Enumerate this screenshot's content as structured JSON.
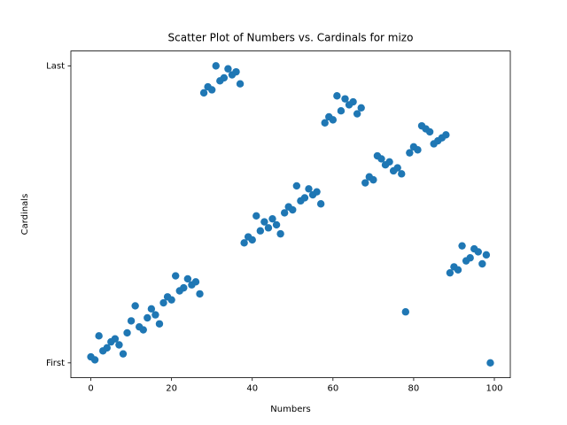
{
  "chart_data": {
    "type": "scatter",
    "title": "Scatter Plot of Numbers vs. Cardinals for mizo",
    "x_label": "Numbers",
    "y_label": "Cardinals",
    "color": "#1f77b4",
    "x": [
      0,
      1,
      2,
      3,
      4,
      5,
      6,
      7,
      8,
      9,
      10,
      11,
      12,
      13,
      14,
      15,
      16,
      17,
      18,
      19,
      20,
      21,
      22,
      23,
      24,
      25,
      26,
      27,
      28,
      29,
      30,
      31,
      32,
      33,
      34,
      35,
      36,
      37,
      38,
      39,
      40,
      41,
      42,
      43,
      44,
      45,
      46,
      47,
      48,
      49,
      50,
      51,
      52,
      53,
      54,
      55,
      56,
      57,
      58,
      59,
      60,
      61,
      62,
      63,
      64,
      65,
      66,
      67,
      68,
      69,
      70,
      71,
      72,
      73,
      74,
      75,
      76,
      77,
      78,
      79,
      80,
      81,
      82,
      83,
      84,
      85,
      86,
      87,
      88,
      89,
      90,
      91,
      92,
      93,
      94,
      95,
      96,
      97,
      98,
      99
    ],
    "values": [
      2,
      1,
      9,
      4,
      5,
      7,
      8,
      6,
      3,
      10,
      14,
      19,
      12,
      11,
      15,
      18,
      16,
      13,
      20,
      22,
      21,
      29,
      24,
      25,
      28,
      26,
      27,
      23,
      90,
      92,
      91,
      99,
      94,
      95,
      98,
      96,
      97,
      93,
      40,
      42,
      41,
      49,
      44,
      47,
      45,
      48,
      46,
      43,
      50,
      52,
      51,
      59,
      54,
      55,
      58,
      56,
      57,
      53,
      80,
      82,
      81,
      89,
      84,
      88,
      86,
      87,
      83,
      85,
      60,
      62,
      61,
      69,
      68,
      66,
      67,
      64,
      65,
      63,
      17,
      70,
      72,
      71,
      79,
      78,
      77,
      73,
      74,
      75,
      76,
      30,
      32,
      31,
      39,
      34,
      35,
      38,
      37,
      33,
      36,
      0
    ],
    "xlim": [
      -4.95,
      103.95
    ],
    "ylim": [
      -4.95,
      103.95
    ],
    "xticks": [
      0,
      20,
      40,
      60,
      80,
      100
    ],
    "yticks": [
      {
        "value": 0,
        "label": "First"
      },
      {
        "value": 99,
        "label": "Last"
      }
    ]
  }
}
